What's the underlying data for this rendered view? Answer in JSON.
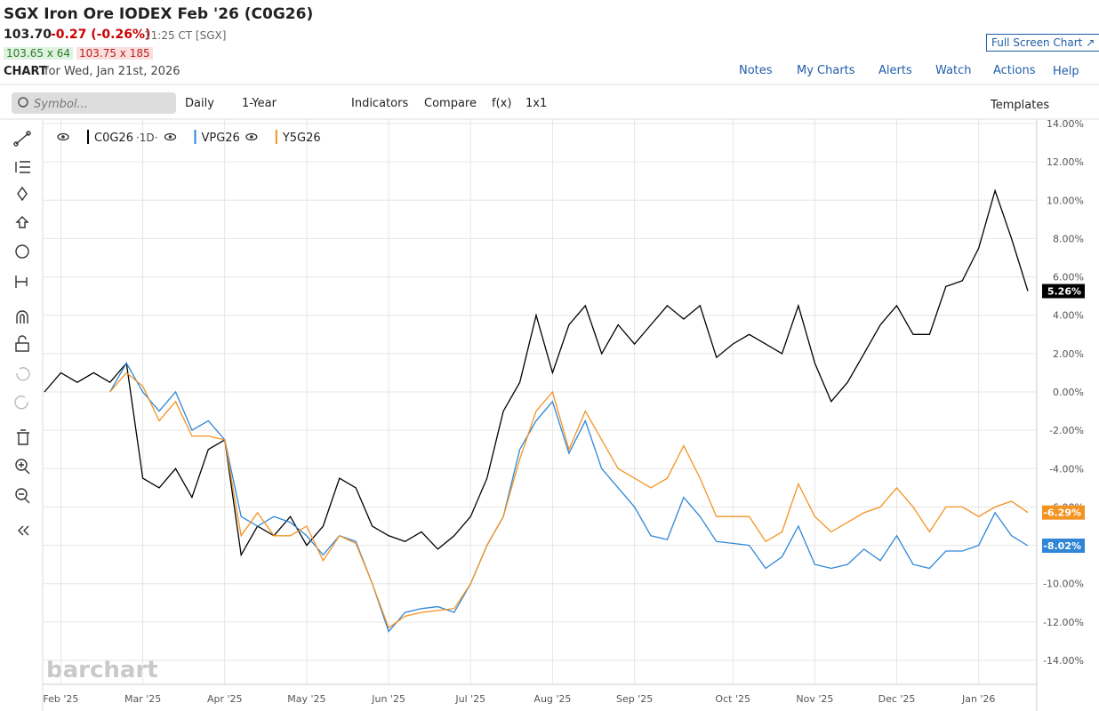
{
  "header": {
    "title": "SGX Iron Ore IODEX Feb '26 (C0G26)",
    "price": "103.70",
    "change": "-0.27 (-0.26%)",
    "time": "11:25 CT [SGX]",
    "bid": "103.65 x 64",
    "ask": "103.75 x 185",
    "chart_label": "CHART",
    "chart_date": "for Wed, Jan 21st, 2026",
    "full_screen": "Full Screen Chart"
  },
  "nav": [
    "Notes",
    "My Charts",
    "Alerts",
    "Watch",
    "Actions",
    "Help"
  ],
  "toolbar": {
    "symbol_placeholder": "Symbol...",
    "items": [
      "Daily",
      "1-Year",
      "Indicators",
      "Compare",
      "f(x)",
      "1x1"
    ],
    "templates": "Templates"
  },
  "watermark": "barchart",
  "chart_data": {
    "type": "line",
    "legend_interval": "·1D·",
    "categories": [
      null,
      "Feb '25",
      null,
      null,
      null,
      null,
      "Mar '25",
      null,
      null,
      null,
      null,
      "Apr '25",
      null,
      null,
      null,
      null,
      "May '25",
      null,
      null,
      null,
      null,
      "Jun '25",
      null,
      null,
      null,
      null,
      "Jul '25",
      null,
      null,
      null,
      null,
      "Aug '25",
      null,
      null,
      null,
      null,
      "Sep '25",
      null,
      null,
      null,
      null,
      null,
      "Oct '25",
      null,
      null,
      null,
      null,
      "Nov '25",
      null,
      null,
      null,
      null,
      "Dec '25",
      null,
      null,
      null,
      null,
      "Jan '26",
      null,
      null,
      null
    ],
    "series": [
      {
        "name": "C0G26",
        "color": "#000000",
        "last_value_label": "5.26%",
        "values": [
          0,
          1,
          0.5,
          1,
          0.5,
          1.5,
          -4.5,
          -5,
          -4,
          -5.5,
          -3,
          -2.5,
          -8.5,
          -7,
          -7.5,
          -6.5,
          -8,
          -7,
          -4.5,
          -5,
          -7,
          -7.5,
          -7.8,
          -7.3,
          -8.2,
          -7.5,
          -6.5,
          -4.5,
          -1,
          0.5,
          4,
          1,
          3.5,
          4.5,
          2,
          3.5,
          2.5,
          3.5,
          4.5,
          3.8,
          4.5,
          1.8,
          2.5,
          3,
          2.5,
          2,
          4.5,
          1.5,
          -0.5,
          0.5,
          2,
          3.5,
          4.5,
          3,
          3,
          5.5,
          5.8,
          7.5,
          10.5,
          8,
          5.26
        ]
      },
      {
        "name": "VPG26",
        "color": "#2f86d6",
        "last_value_label": "-8.02%",
        "values": [
          null,
          null,
          null,
          null,
          0,
          1.5,
          0,
          -1,
          0,
          -2,
          -1.5,
          -2.5,
          -6.5,
          -7,
          -6.5,
          -6.8,
          -7.5,
          -8.5,
          -7.5,
          -7.8,
          -10,
          -12.5,
          -11.5,
          -11.3,
          -11.2,
          -11.5,
          -10,
          -8,
          -6.5,
          -3,
          -1.5,
          -0.5,
          -3.2,
          -1.5,
          -4,
          -5,
          -6,
          -7.5,
          -7.7,
          -5.5,
          -6.5,
          -7.8,
          -7.9,
          -8,
          -9.2,
          -8.6,
          -7,
          -9,
          -9.2,
          -9,
          -8.2,
          -8.8,
          -7.5,
          -9,
          -9.2,
          -8.3,
          -8.3,
          -8,
          -6.3,
          -7.5,
          -8.02
        ]
      },
      {
        "name": "Y5G26",
        "color": "#f39322",
        "last_value_label": "-6.29%",
        "values": [
          null,
          null,
          null,
          null,
          0,
          1,
          0.3,
          -1.5,
          -0.5,
          -2.3,
          -2.3,
          -2.5,
          -7.5,
          -6.3,
          -7.5,
          -7.5,
          -7,
          -8.8,
          -7.5,
          -7.9,
          -10,
          -12.3,
          -11.7,
          -11.5,
          -11.4,
          -11.3,
          -10,
          -8,
          -6.5,
          -3.5,
          -1,
          0,
          -3,
          -1,
          -2.5,
          -4,
          -4.5,
          -5,
          -4.5,
          -2.8,
          -4.5,
          -6.5,
          -6.5,
          -6.5,
          -7.8,
          -7.3,
          -4.8,
          -6.5,
          -7.3,
          -6.8,
          -6.3,
          -6,
          -5,
          -6,
          -7.3,
          -6,
          -6,
          -6.5,
          -6,
          -5.7,
          -6.29
        ]
      }
    ],
    "ylim": [
      -14,
      14
    ],
    "yticks": [
      {
        "value": 14,
        "label": "14.00%"
      },
      {
        "value": 12,
        "label": "12.00%"
      },
      {
        "value": 10,
        "label": "10.00%"
      },
      {
        "value": 8,
        "label": "8.00%"
      },
      {
        "value": 6,
        "label": "6.00%"
      },
      {
        "value": 4,
        "label": "4.00%"
      },
      {
        "value": 2,
        "label": "2.00%"
      },
      {
        "value": 0,
        "label": "0.00%"
      },
      {
        "value": -2,
        "label": "-2.00%"
      },
      {
        "value": -4,
        "label": "-4.00%"
      },
      {
        "value": -6,
        "label": "-6.00%"
      },
      {
        "value": -8,
        "label": "-8.00%"
      },
      {
        "value": -10,
        "label": "-10.00%"
      },
      {
        "value": -12,
        "label": "-12.00%"
      },
      {
        "value": -14,
        "label": "-14.00%"
      }
    ],
    "grid": true
  }
}
